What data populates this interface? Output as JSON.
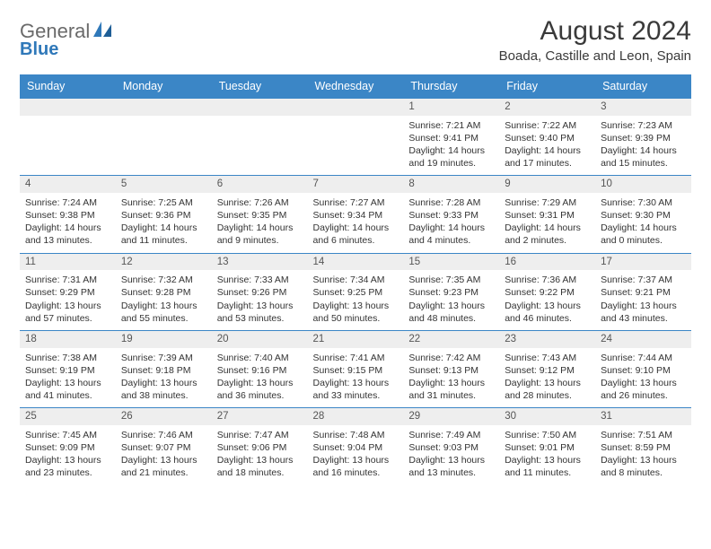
{
  "logo": {
    "text1": "General",
    "text2": "Blue"
  },
  "title": "August 2024",
  "location": "Boada, Castille and Leon, Spain",
  "colors": {
    "header_bg": "#3b86c6",
    "header_text": "#ffffff",
    "daynum_bg": "#eeeeee",
    "border": "#3b86c6",
    "text": "#333333",
    "logo_gray": "#6a6a6a",
    "logo_blue": "#2f78b9"
  },
  "day_headers": [
    "Sunday",
    "Monday",
    "Tuesday",
    "Wednesday",
    "Thursday",
    "Friday",
    "Saturday"
  ],
  "weeks": [
    [
      {
        "n": "",
        "sunrise": "",
        "sunset": "",
        "daylight": ""
      },
      {
        "n": "",
        "sunrise": "",
        "sunset": "",
        "daylight": ""
      },
      {
        "n": "",
        "sunrise": "",
        "sunset": "",
        "daylight": ""
      },
      {
        "n": "",
        "sunrise": "",
        "sunset": "",
        "daylight": ""
      },
      {
        "n": "1",
        "sunrise": "7:21 AM",
        "sunset": "9:41 PM",
        "daylight": "14 hours and 19 minutes."
      },
      {
        "n": "2",
        "sunrise": "7:22 AM",
        "sunset": "9:40 PM",
        "daylight": "14 hours and 17 minutes."
      },
      {
        "n": "3",
        "sunrise": "7:23 AM",
        "sunset": "9:39 PM",
        "daylight": "14 hours and 15 minutes."
      }
    ],
    [
      {
        "n": "4",
        "sunrise": "7:24 AM",
        "sunset": "9:38 PM",
        "daylight": "14 hours and 13 minutes."
      },
      {
        "n": "5",
        "sunrise": "7:25 AM",
        "sunset": "9:36 PM",
        "daylight": "14 hours and 11 minutes."
      },
      {
        "n": "6",
        "sunrise": "7:26 AM",
        "sunset": "9:35 PM",
        "daylight": "14 hours and 9 minutes."
      },
      {
        "n": "7",
        "sunrise": "7:27 AM",
        "sunset": "9:34 PM",
        "daylight": "14 hours and 6 minutes."
      },
      {
        "n": "8",
        "sunrise": "7:28 AM",
        "sunset": "9:33 PM",
        "daylight": "14 hours and 4 minutes."
      },
      {
        "n": "9",
        "sunrise": "7:29 AM",
        "sunset": "9:31 PM",
        "daylight": "14 hours and 2 minutes."
      },
      {
        "n": "10",
        "sunrise": "7:30 AM",
        "sunset": "9:30 PM",
        "daylight": "14 hours and 0 minutes."
      }
    ],
    [
      {
        "n": "11",
        "sunrise": "7:31 AM",
        "sunset": "9:29 PM",
        "daylight": "13 hours and 57 minutes."
      },
      {
        "n": "12",
        "sunrise": "7:32 AM",
        "sunset": "9:28 PM",
        "daylight": "13 hours and 55 minutes."
      },
      {
        "n": "13",
        "sunrise": "7:33 AM",
        "sunset": "9:26 PM",
        "daylight": "13 hours and 53 minutes."
      },
      {
        "n": "14",
        "sunrise": "7:34 AM",
        "sunset": "9:25 PM",
        "daylight": "13 hours and 50 minutes."
      },
      {
        "n": "15",
        "sunrise": "7:35 AM",
        "sunset": "9:23 PM",
        "daylight": "13 hours and 48 minutes."
      },
      {
        "n": "16",
        "sunrise": "7:36 AM",
        "sunset": "9:22 PM",
        "daylight": "13 hours and 46 minutes."
      },
      {
        "n": "17",
        "sunrise": "7:37 AM",
        "sunset": "9:21 PM",
        "daylight": "13 hours and 43 minutes."
      }
    ],
    [
      {
        "n": "18",
        "sunrise": "7:38 AM",
        "sunset": "9:19 PM",
        "daylight": "13 hours and 41 minutes."
      },
      {
        "n": "19",
        "sunrise": "7:39 AM",
        "sunset": "9:18 PM",
        "daylight": "13 hours and 38 minutes."
      },
      {
        "n": "20",
        "sunrise": "7:40 AM",
        "sunset": "9:16 PM",
        "daylight": "13 hours and 36 minutes."
      },
      {
        "n": "21",
        "sunrise": "7:41 AM",
        "sunset": "9:15 PM",
        "daylight": "13 hours and 33 minutes."
      },
      {
        "n": "22",
        "sunrise": "7:42 AM",
        "sunset": "9:13 PM",
        "daylight": "13 hours and 31 minutes."
      },
      {
        "n": "23",
        "sunrise": "7:43 AM",
        "sunset": "9:12 PM",
        "daylight": "13 hours and 28 minutes."
      },
      {
        "n": "24",
        "sunrise": "7:44 AM",
        "sunset": "9:10 PM",
        "daylight": "13 hours and 26 minutes."
      }
    ],
    [
      {
        "n": "25",
        "sunrise": "7:45 AM",
        "sunset": "9:09 PM",
        "daylight": "13 hours and 23 minutes."
      },
      {
        "n": "26",
        "sunrise": "7:46 AM",
        "sunset": "9:07 PM",
        "daylight": "13 hours and 21 minutes."
      },
      {
        "n": "27",
        "sunrise": "7:47 AM",
        "sunset": "9:06 PM",
        "daylight": "13 hours and 18 minutes."
      },
      {
        "n": "28",
        "sunrise": "7:48 AM",
        "sunset": "9:04 PM",
        "daylight": "13 hours and 16 minutes."
      },
      {
        "n": "29",
        "sunrise": "7:49 AM",
        "sunset": "9:03 PM",
        "daylight": "13 hours and 13 minutes."
      },
      {
        "n": "30",
        "sunrise": "7:50 AM",
        "sunset": "9:01 PM",
        "daylight": "13 hours and 11 minutes."
      },
      {
        "n": "31",
        "sunrise": "7:51 AM",
        "sunset": "8:59 PM",
        "daylight": "13 hours and 8 minutes."
      }
    ]
  ]
}
